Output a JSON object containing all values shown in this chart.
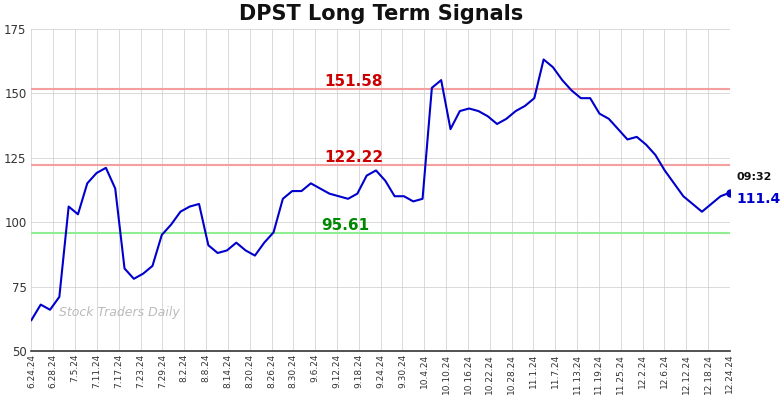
{
  "title": "DPST Long Term Signals",
  "title_fontsize": 15,
  "title_fontweight": "bold",
  "background_color": "#ffffff",
  "line_color": "#0000cc",
  "line_width": 1.5,
  "ylim": [
    50,
    175
  ],
  "yticks": [
    50,
    75,
    100,
    125,
    150,
    175
  ],
  "hline_upper": 151.58,
  "hline_middle": 122.22,
  "hline_lower": 95.61,
  "hline_upper_color": "#f5a0a0",
  "hline_middle_color": "#f5a0a0",
  "hline_lower_color": "#90ee90",
  "hline_linewidth": 1.5,
  "annotation_upper_text": "151.58",
  "annotation_upper_color": "#cc0000",
  "annotation_middle_text": "122.22",
  "annotation_middle_color": "#cc0000",
  "annotation_lower_text": "95.61",
  "annotation_lower_color": "#008800",
  "watermark_text": "Stock Traders Daily",
  "watermark_color": "#bbbbbb",
  "end_label_time": "09:32",
  "end_label_value": "111.4",
  "end_marker_color": "#0000cc",
  "grid_color": "#cccccc",
  "xtick_labels": [
    "6.24.24",
    "6.28.24",
    "7.5.24",
    "7.11.24",
    "7.17.24",
    "7.23.24",
    "7.29.24",
    "8.2.24",
    "8.8.24",
    "8.14.24",
    "8.20.24",
    "8.26.24",
    "8.30.24",
    "9.6.24",
    "9.12.24",
    "9.18.24",
    "9.24.24",
    "9.30.24",
    "10.4.24",
    "10.10.24",
    "10.16.24",
    "10.22.24",
    "10.28.24",
    "11.1.24",
    "11.7.24",
    "11.13.24",
    "11.19.24",
    "11.25.24",
    "12.2.24",
    "12.6.24",
    "12.12.24",
    "12.18.24",
    "12.24.24"
  ],
  "y_values": [
    62,
    68,
    66,
    71,
    106,
    103,
    115,
    119,
    121,
    113,
    82,
    78,
    80,
    83,
    95,
    99,
    104,
    106,
    107,
    91,
    88,
    89,
    92,
    89,
    87,
    92,
    96,
    109,
    112,
    112,
    115,
    113,
    111,
    110,
    109,
    111,
    118,
    120,
    116,
    110,
    110,
    108,
    109,
    152,
    155,
    136,
    143,
    144,
    143,
    141,
    138,
    140,
    143,
    145,
    148,
    163,
    160,
    155,
    151,
    148,
    148,
    142,
    140,
    136,
    132,
    133,
    130,
    126,
    120,
    115,
    110,
    107,
    104,
    107,
    110,
    111.4
  ]
}
